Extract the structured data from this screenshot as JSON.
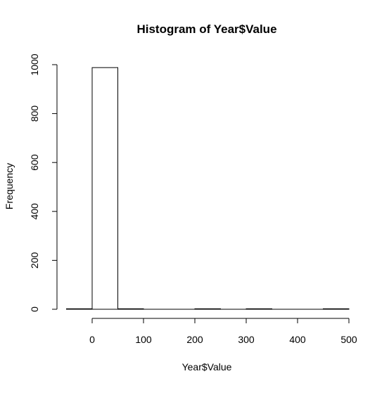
{
  "chart_data": {
    "type": "bar",
    "title": "Histogram of Year$Value",
    "xlabel": "Year$Value",
    "ylabel": "Frequency",
    "bins": [
      {
        "start": -50,
        "end": 0,
        "count": 2
      },
      {
        "start": 0,
        "end": 50,
        "count": 988
      },
      {
        "start": 50,
        "end": 100,
        "count": 2
      },
      {
        "start": 100,
        "end": 150,
        "count": 0
      },
      {
        "start": 150,
        "end": 200,
        "count": 0
      },
      {
        "start": 200,
        "end": 250,
        "count": 2
      },
      {
        "start": 250,
        "end": 300,
        "count": 0
      },
      {
        "start": 300,
        "end": 350,
        "count": 2
      },
      {
        "start": 350,
        "end": 400,
        "count": 0
      },
      {
        "start": 400,
        "end": 450,
        "count": 0
      },
      {
        "start": 450,
        "end": 500,
        "count": 2
      }
    ],
    "x_ticks": [
      0,
      100,
      200,
      300,
      400,
      500
    ],
    "y_ticks": [
      0,
      200,
      400,
      600,
      800,
      1000
    ],
    "xlim": [
      -50,
      500
    ],
    "ylim": [
      0,
      1000
    ],
    "grid": false,
    "legend": "none",
    "bar_fill": "#ffffff",
    "bar_stroke": "#000000"
  }
}
